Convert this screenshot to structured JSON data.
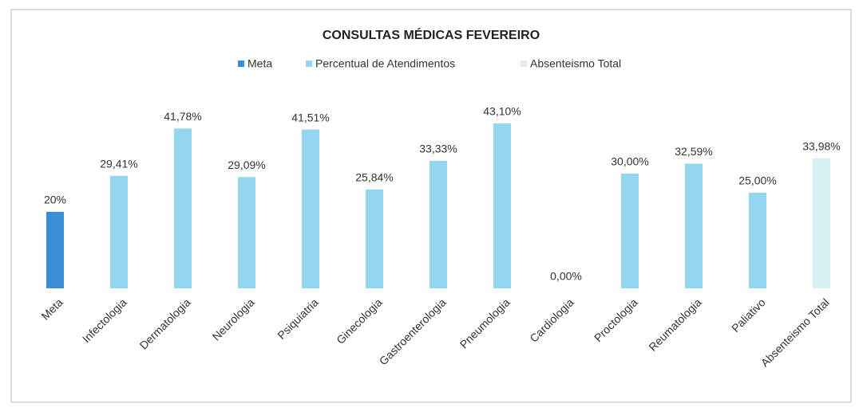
{
  "chart_data": {
    "type": "bar",
    "title": "CONSULTAS MÉDICAS FEVEREIRO",
    "categories": [
      "Meta",
      "Infectologia",
      "Dermatologia",
      "Neurologia",
      "Psiquiatria",
      "Ginecologia",
      "Gastroenterologia",
      "Pneumologia",
      "Cardiologia",
      "Proctologia",
      "Reumatologia",
      "Paliativo",
      "Absenteismo Total"
    ],
    "series": [
      {
        "name": "Meta",
        "color": "#3b8ed6",
        "values": [
          20,
          null,
          null,
          null,
          null,
          null,
          null,
          null,
          null,
          null,
          null,
          null,
          null
        ],
        "value_labels": [
          "20%",
          null,
          null,
          null,
          null,
          null,
          null,
          null,
          null,
          null,
          null,
          null,
          null
        ]
      },
      {
        "name": "Percentual de Atendimentos",
        "color": "#92d6f2",
        "values": [
          null,
          29.41,
          41.78,
          29.09,
          41.51,
          25.84,
          33.33,
          43.1,
          0,
          30,
          32.59,
          25,
          null
        ],
        "value_labels": [
          null,
          "29,41%",
          "41,78%",
          "29,09%",
          "41,51%",
          "25,84%",
          "33,33%",
          "43,10%",
          "0,00%",
          "30,00%",
          "32,59%",
          "25,00%",
          null
        ]
      },
      {
        "name": "Absenteismo Total",
        "color": "#d8f1f4",
        "values": [
          null,
          null,
          null,
          null,
          null,
          null,
          null,
          null,
          null,
          null,
          null,
          null,
          33.98
        ],
        "value_labels": [
          null,
          null,
          null,
          null,
          null,
          null,
          null,
          null,
          null,
          null,
          null,
          null,
          "33,98%"
        ]
      }
    ],
    "legend": "top"
  }
}
